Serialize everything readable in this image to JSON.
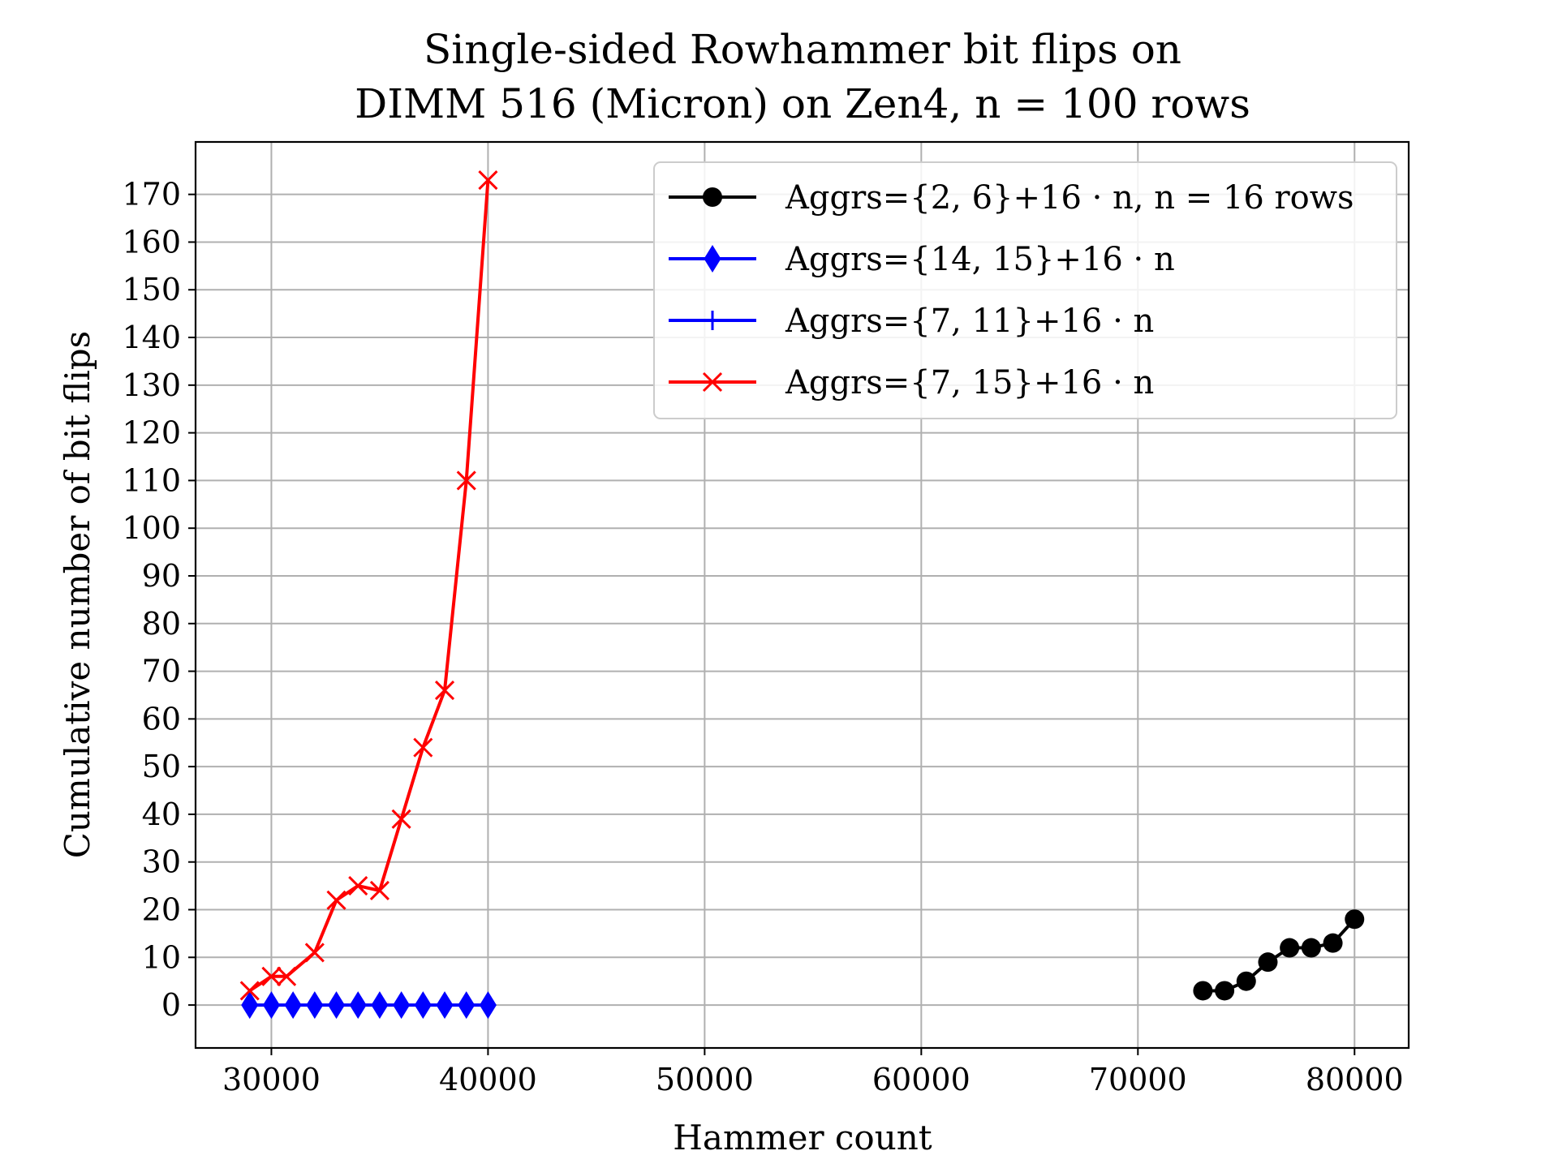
{
  "chart_data": {
    "type": "line",
    "title": [
      "Single-sided Rowhammer bit flips on",
      "DIMM 516 (Micron) on Zen4, n = 100 rows"
    ],
    "xlabel": "Hammer count",
    "ylabel": "Cumulative number of bit flips",
    "xlim": [
      26500,
      82500
    ],
    "ylim": [
      -9,
      181
    ],
    "x_ticks": [
      30000,
      40000,
      50000,
      60000,
      70000,
      80000
    ],
    "y_ticks": [
      0,
      10,
      20,
      30,
      40,
      50,
      60,
      70,
      80,
      90,
      100,
      110,
      120,
      130,
      140,
      150,
      160,
      170
    ],
    "grid": true,
    "legend_position": "top-right",
    "series": [
      {
        "name": "Aggrs={2, 6}+16 · n, n = 16 rows",
        "color": "#000000",
        "marker": "circle",
        "x": [
          73000,
          74000,
          75000,
          76000,
          77000,
          78000,
          79000,
          80000
        ],
        "y": [
          3,
          3,
          5,
          9,
          12,
          12,
          13,
          18
        ]
      },
      {
        "name": "Aggrs={14, 15}+16 · n",
        "color": "#0000ff",
        "marker": "diamond",
        "x": [
          29000,
          30000,
          31000,
          32000,
          33000,
          34000,
          35000,
          36000,
          37000,
          38000,
          39000,
          40000
        ],
        "y": [
          0,
          0,
          0,
          0,
          0,
          0,
          0,
          0,
          0,
          0,
          0,
          0
        ]
      },
      {
        "name": "Aggrs={7, 11}+16 · n",
        "color": "#0000ff",
        "marker": "plus",
        "x": [],
        "y": []
      },
      {
        "name": "Aggrs={7, 15}+16 · n",
        "color": "#ff0000",
        "marker": "x",
        "x": [
          29000,
          30000,
          30700,
          32000,
          33000,
          34000,
          35000,
          36000,
          37000,
          38000,
          39000,
          40000
        ],
        "y": [
          3,
          6,
          6,
          11,
          22,
          25,
          24,
          39,
          54,
          66,
          110,
          173
        ]
      }
    ]
  }
}
